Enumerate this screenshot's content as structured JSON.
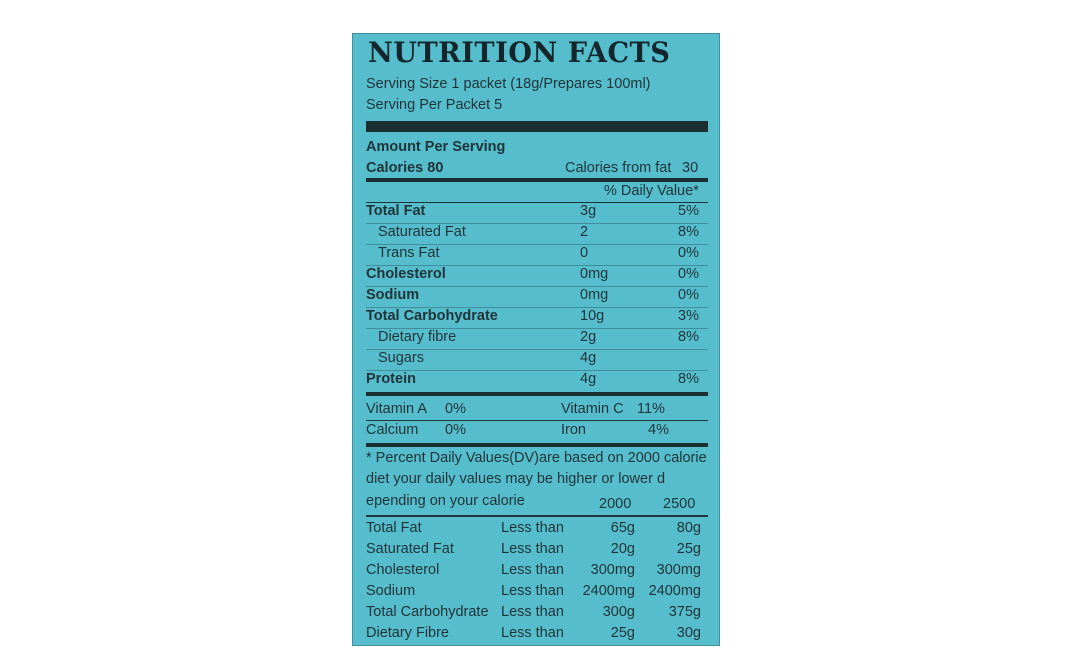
{
  "title": "NUTRITION FACTS",
  "serving_size": "Serving Size 1 packet (18g/Prepares 100ml)",
  "serving_per": "Serving Per Packet 5",
  "amount_per_serving": "Amount Per Serving",
  "calories": "Calories 80",
  "calories_from_fat_label": "Calories from fat",
  "calories_from_fat_value": "30",
  "daily_value_header": "% Daily Value*",
  "nutrients": [
    {
      "name": "Total Fat",
      "amount": "3g",
      "dv": "5%"
    },
    {
      "name": "Saturated Fat",
      "amount": "2",
      "dv": "8%"
    },
    {
      "name": "Trans Fat",
      "amount": "0",
      "dv": "0%"
    },
    {
      "name": "Cholesterol",
      "amount": "0mg",
      "dv": "0%"
    },
    {
      "name": "Sodium",
      "amount": "0mg",
      "dv": "0%"
    },
    {
      "name": "Total Carbohydrate",
      "amount": "10g",
      "dv": "3%"
    },
    {
      "name": "Dietary fibre",
      "amount": "2g",
      "dv": "8%"
    },
    {
      "name": "Sugars",
      "amount": "4g",
      "dv": ""
    },
    {
      "name": "Protein",
      "amount": "4g",
      "dv": "8%"
    }
  ],
  "vitamins": [
    {
      "name": "Vitamin A",
      "value": "0%"
    },
    {
      "name": "Vitamin C",
      "value": "11%"
    },
    {
      "name": "Calcium",
      "value": "0%"
    },
    {
      "name": "Iron",
      "value": "4%"
    }
  ],
  "footnote_lines": [
    "* Percent Daily Values(DV)are based on 2000 calorie",
    "diet your daily values may be higher or lower d",
    "epending on your calorie"
  ],
  "dv_columns": [
    "2000",
    "2500"
  ],
  "dv_table": [
    {
      "name": "Total Fat",
      "qualifier": "Less than",
      "c2000": "65g",
      "c2500": "80g"
    },
    {
      "name": "Saturated Fat",
      "qualifier": "Less than",
      "c2000": "20g",
      "c2500": "25g"
    },
    {
      "name": "Cholesterol",
      "qualifier": "Less than",
      "c2000": "300mg",
      "c2500": "300mg"
    },
    {
      "name": "Sodium",
      "qualifier": "Less than",
      "c2000": "2400mg",
      "c2500": "2400mg"
    },
    {
      "name": "Total Carbohydrate",
      "qualifier": "Less than",
      "c2000": "300g",
      "c2500": "375g"
    },
    {
      "name": "Dietary Fibre",
      "qualifier": "Less than",
      "c2000": "25g",
      "c2500": "30g"
    }
  ]
}
